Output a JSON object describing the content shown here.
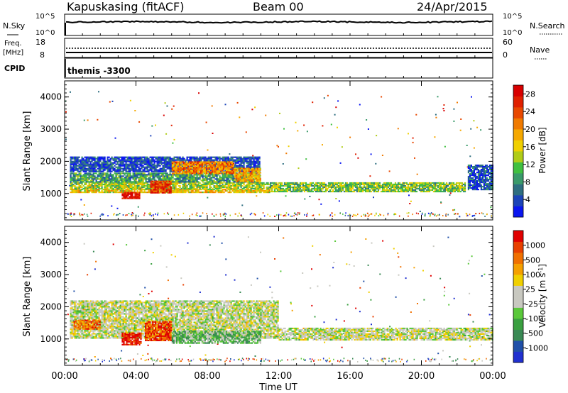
{
  "header": {
    "station": "Kapuskasing (fitACF)",
    "beam": "Beam 00",
    "date": "24/Apr/2015"
  },
  "mini_panels": {
    "nsky_label": "N.Sky",
    "nsearch_label": "N.Search",
    "freq_label_1": "Freq.",
    "freq_label_2": "[MHz]",
    "nave_label": "Nave",
    "cpid_label": "CPID",
    "cpid_value": "themis -3300",
    "noise_ticks_left": [
      "10^5",
      "10^0"
    ],
    "noise_ticks_right": [
      "10^5",
      "10^0"
    ],
    "freq_ticks": [
      "18",
      "8"
    ],
    "nave_ticks": [
      "60",
      "0"
    ]
  },
  "colors": {
    "power": [
      "#0a16f0",
      "#1c44b8",
      "#2e6e80",
      "#3a9a6a",
      "#40c040",
      "#b0cc18",
      "#f0d000",
      "#f5a800",
      "#f07a00",
      "#e84800",
      "#e02000",
      "#d80000"
    ],
    "velocity": [
      "#2030d0",
      "#2050a8",
      "#3a8a55",
      "#3aa040",
      "#5ac83a",
      "#c8c8c0",
      "#c8c8c0",
      "#f0d000",
      "#f5a000",
      "#f07000",
      "#e84000",
      "#e00000"
    ]
  },
  "chart_data": [
    {
      "type": "heatmap",
      "name": "power",
      "ylabel": "Slant Range [km]",
      "xlabel": "",
      "yticks": [
        "1000",
        "2000",
        "3000",
        "4000"
      ],
      "xlim_hours": [
        0,
        24
      ],
      "ylim_km": [
        180,
        4500
      ],
      "colorbar_label": "Power [dB]",
      "colorbar_ticks": [
        "4",
        "8",
        "12",
        "16",
        "20",
        "24",
        "28"
      ],
      "colorbar_range": [
        0,
        30
      ],
      "bands": [
        {
          "t0": 0.3,
          "t1": 11.5,
          "r0": 1000,
          "r1": 1150,
          "level": 0.55
        },
        {
          "t0": 0.3,
          "t1": 12.0,
          "r0": 1150,
          "r1": 1350,
          "level": 0.45
        },
        {
          "t0": 0.3,
          "t1": 11.0,
          "r0": 1350,
          "r1": 1650,
          "level": 0.3
        },
        {
          "t0": 0.3,
          "t1": 11.0,
          "r0": 1650,
          "r1": 2150,
          "level": 0.12
        },
        {
          "t0": 11.5,
          "t1": 22.5,
          "r0": 1050,
          "r1": 1350,
          "level": 0.4
        },
        {
          "t0": 3.2,
          "t1": 4.2,
          "r0": 850,
          "r1": 1050,
          "level": 0.95
        },
        {
          "t0": 4.8,
          "t1": 6.0,
          "r0": 1000,
          "r1": 1400,
          "level": 0.85
        },
        {
          "t0": 6.0,
          "t1": 9.5,
          "r0": 1600,
          "r1": 2000,
          "level": 0.7
        },
        {
          "t0": 9.5,
          "t1": 11.0,
          "r0": 1350,
          "r1": 1800,
          "level": 0.65
        },
        {
          "t0": 22.6,
          "t1": 24.0,
          "r0": 1100,
          "r1": 1900,
          "level": 0.15
        }
      ]
    },
    {
      "type": "heatmap",
      "name": "velocity",
      "ylabel": "Slant Range [km]",
      "xlabel": "Time UT",
      "yticks": [
        "1000",
        "2000",
        "3000",
        "4000"
      ],
      "xticks": [
        "00:00",
        "04:00",
        "08:00",
        "12:00",
        "16:00",
        "20:00",
        "00:00"
      ],
      "xlim_hours": [
        0,
        24
      ],
      "ylim_km": [
        180,
        4500
      ],
      "colorbar_label": "Velocity [m s^-1]",
      "colorbar_ticks": [
        "1000",
        "500",
        "100",
        "25",
        "-25",
        "-100",
        "-500",
        "-1000"
      ],
      "bands": [
        {
          "t0": 0.3,
          "t1": 12.0,
          "r0": 1000,
          "r1": 2200,
          "level": 0.5
        },
        {
          "t0": 12.0,
          "t1": 24.0,
          "r0": 950,
          "r1": 1350,
          "level": 0.5
        },
        {
          "t0": 3.2,
          "t1": 4.3,
          "r0": 800,
          "r1": 1200,
          "level": 0.95
        },
        {
          "t0": 4.5,
          "t1": 6.0,
          "r0": 950,
          "r1": 1550,
          "level": 0.88
        },
        {
          "t0": 6.0,
          "t1": 11.0,
          "r0": 850,
          "r1": 1250,
          "level": 0.35
        },
        {
          "t0": 0.5,
          "t1": 2.0,
          "r0": 1300,
          "r1": 1600,
          "level": 0.8
        }
      ]
    }
  ]
}
